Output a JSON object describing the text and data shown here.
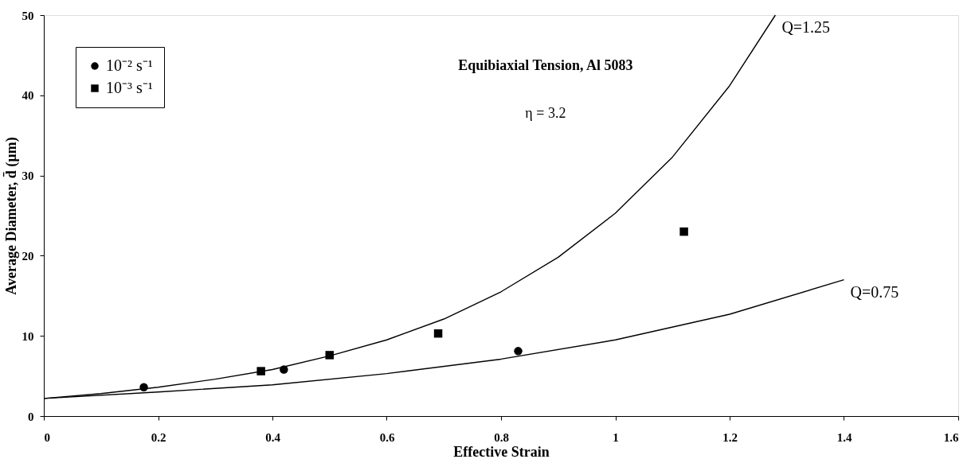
{
  "chart_data": {
    "type": "scatter",
    "xlabel": "Effective Strain",
    "ylabel": "Average Diameter, d̄ (µm)",
    "xlim": [
      0,
      1.6
    ],
    "xticks": [
      0,
      0.2,
      0.4,
      0.6,
      0.8,
      1,
      1.2,
      1.4,
      1.6
    ],
    "ylim": [
      0,
      50
    ],
    "yticks": [
      0,
      10,
      20,
      30,
      40,
      50
    ],
    "grid": false,
    "legend": "top left",
    "annotations": [
      "Equibiaxial Tension, Al 5083",
      "η = 3.2"
    ],
    "series": [
      {
        "name": "10⁻² s⁻¹",
        "marker": "circle",
        "color": "#000000",
        "x": [
          0.175,
          0.42,
          0.83
        ],
        "values": [
          3.6,
          5.8,
          8.1
        ]
      },
      {
        "name": "10⁻³ s⁻¹",
        "marker": "square",
        "color": "#000000",
        "x": [
          0.38,
          0.5,
          0.69,
          1.12
        ],
        "values": [
          5.6,
          7.6,
          10.3,
          23
        ]
      },
      {
        "name": "Q=1.25",
        "type": "line",
        "line_style": "solid",
        "color": "#000000",
        "x": [
          0,
          0.1,
          0.2,
          0.3,
          0.4,
          0.5,
          0.6,
          0.7,
          0.8,
          0.9,
          1.0,
          1.1,
          1.2,
          1.28
        ],
        "values": [
          2.2,
          2.8,
          3.6,
          4.6,
          5.8,
          7.5,
          9.5,
          12.1,
          15.5,
          19.8,
          25.3,
          32.3,
          41.2,
          50
        ]
      },
      {
        "name": "Q=0.75",
        "type": "line",
        "line_style": "solid",
        "color": "#000000",
        "x": [
          0,
          0.2,
          0.4,
          0.6,
          0.8,
          1.0,
          1.2,
          1.4
        ],
        "values": [
          2.2,
          3,
          3.9,
          5.3,
          7.1,
          9.5,
          12.7,
          17.0
        ]
      }
    ]
  }
}
